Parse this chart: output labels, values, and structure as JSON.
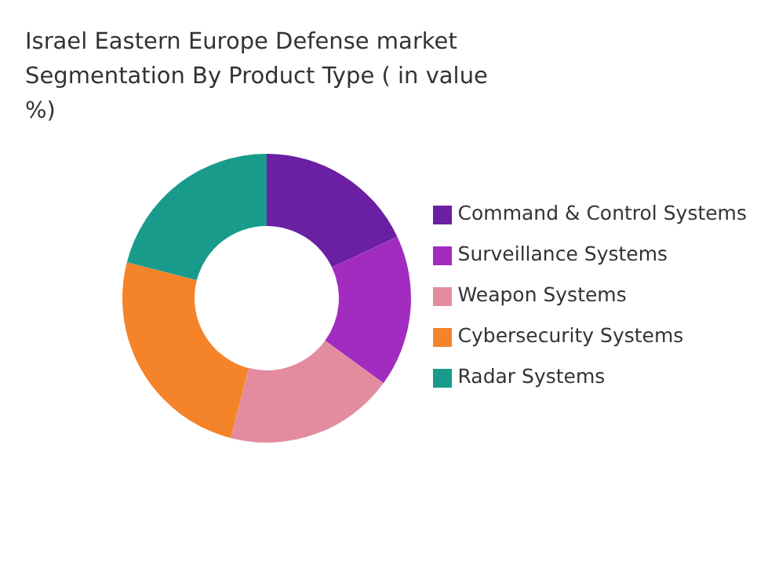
{
  "chart_data": {
    "type": "donut",
    "title": "Israel Eastern Europe Defense market Segmentation By Product Type ( in value %)",
    "categories": [
      "Command & Control Systems",
      "Surveillance Systems",
      "Weapon Systems",
      "Cybersecurity Systems",
      "Radar Systems"
    ],
    "values": [
      18,
      17,
      19,
      25,
      21
    ],
    "colors": [
      "#6b1fa3",
      "#a22cbf",
      "#e38c9f",
      "#f5832a",
      "#189b8b"
    ],
    "legend": "right"
  }
}
